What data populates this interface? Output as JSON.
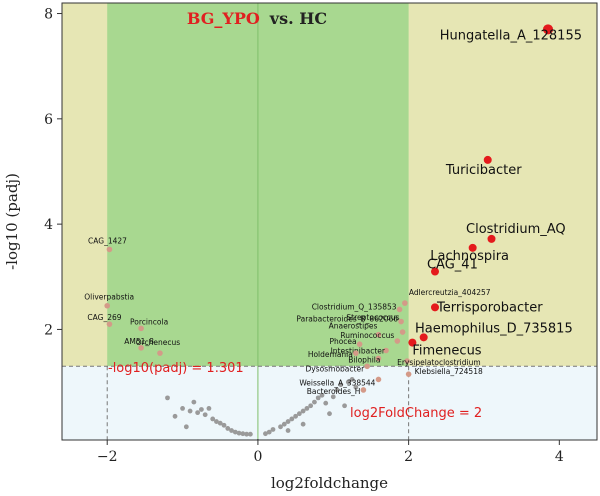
{
  "chart_data": {
    "type": "scatter",
    "title_part1": "BG_YPO",
    "title_part2": "vs. HC",
    "xlabel": "log2foldchange",
    "ylabel": "-log10 (padj)",
    "xlim": [
      -2.6,
      4.5
    ],
    "ylim": [
      -0.1,
      8.2
    ],
    "xticks": [
      -2,
      0,
      2,
      4
    ],
    "yticks": [
      2,
      4,
      6,
      8
    ],
    "x_threshold": 2,
    "y_threshold": 1.301,
    "threshold_labels": {
      "y": "-log10(padj) = 1.301",
      "x": "log2FoldChange = 2"
    },
    "colors": {
      "upregion": "#e6e6b4",
      "green": "#a8d890",
      "lower": "#eef7fb",
      "significant": "#e41a1c",
      "faded": "#d49a88",
      "nonsig": "#9a9a9a"
    },
    "significant": [
      {
        "name": "Hungatella_A_128155",
        "x": 3.85,
        "y": 7.7
      },
      {
        "name": "Turicibacter",
        "x": 3.05,
        "y": 5.22
      },
      {
        "name": "Clostridium_AQ",
        "x": 3.1,
        "y": 3.72
      },
      {
        "name": "Lachnospira",
        "x": 2.85,
        "y": 3.55
      },
      {
        "name": "CAG_41",
        "x": 2.35,
        "y": 3.1
      },
      {
        "name": "Terrisporobacter",
        "x": 2.35,
        "y": 2.42
      },
      {
        "name": "Haemophilus_D_735815",
        "x": 2.2,
        "y": 1.85
      },
      {
        "name": "Fimenecus",
        "x": 2.05,
        "y": 1.75
      }
    ],
    "labeled": [
      {
        "name": "CAG_1427",
        "x": -1.97,
        "y": 3.52
      },
      {
        "name": "Oliverpabstia",
        "x": -2.0,
        "y": 2.45
      },
      {
        "name": "CAG_269",
        "x": -1.97,
        "y": 2.1
      },
      {
        "name": "Porcincola",
        "x": -1.55,
        "y": 2.02
      },
      {
        "name": "AM51_8",
        "x": -1.55,
        "y": 1.65
      },
      {
        "name": "Orchenecus",
        "x": -1.3,
        "y": 1.55
      },
      {
        "name": "Adlercreutzia_404257",
        "x": 1.95,
        "y": 2.5
      },
      {
        "name": "Clostridium_Q_135853",
        "x": 1.88,
        "y": 2.38
      },
      {
        "name": "Parabacteroides_B_862066",
        "x": 1.9,
        "y": 2.15
      },
      {
        "name": "Streptococcus",
        "x": 1.92,
        "y": 1.95
      },
      {
        "name": "Anaerostipes",
        "x": 1.6,
        "y": 1.9
      },
      {
        "name": "Ruminococcus",
        "x": 1.85,
        "y": 1.78
      },
      {
        "name": "Phocea",
        "x": 1.35,
        "y": 1.72
      },
      {
        "name": "Intestinibacter",
        "x": 1.7,
        "y": 1.6
      },
      {
        "name": "Holdemania",
        "x": 1.3,
        "y": 1.55
      },
      {
        "name": "Bilophila",
        "x": 1.6,
        "y": 1.45
      },
      {
        "name": "Erysipelatoclostridium",
        "x": 1.98,
        "y": 1.4
      },
      {
        "name": "Dysosmobacter",
        "x": 1.45,
        "y": 1.3
      },
      {
        "name": "Klebsiella_724518",
        "x": 2.0,
        "y": 1.15
      },
      {
        "name": "Weissella_A_338544",
        "x": 1.6,
        "y": 1.05
      },
      {
        "name": "Bacteroides_H",
        "x": 1.4,
        "y": 0.85
      }
    ],
    "nonsignificant": [
      {
        "x": -1.2,
        "y": 0.7
      },
      {
        "x": -1.0,
        "y": 0.5
      },
      {
        "x": -0.9,
        "y": 0.45
      },
      {
        "x": -0.85,
        "y": 0.62
      },
      {
        "x": -0.8,
        "y": 0.42
      },
      {
        "x": -0.75,
        "y": 0.48
      },
      {
        "x": -0.7,
        "y": 0.38
      },
      {
        "x": -0.65,
        "y": 0.5
      },
      {
        "x": -0.6,
        "y": 0.3
      },
      {
        "x": -0.55,
        "y": 0.25
      },
      {
        "x": -0.5,
        "y": 0.22
      },
      {
        "x": -0.45,
        "y": 0.18
      },
      {
        "x": -0.4,
        "y": 0.12
      },
      {
        "x": -0.35,
        "y": 0.08
      },
      {
        "x": -0.3,
        "y": 0.05
      },
      {
        "x": -0.25,
        "y": 0.03
      },
      {
        "x": -0.2,
        "y": 0.02
      },
      {
        "x": -0.15,
        "y": 0.01
      },
      {
        "x": -0.1,
        "y": 0.01
      },
      {
        "x": 0.1,
        "y": 0.02
      },
      {
        "x": 0.15,
        "y": 0.05
      },
      {
        "x": 0.2,
        "y": 0.1
      },
      {
        "x": 0.3,
        "y": 0.15
      },
      {
        "x": 0.35,
        "y": 0.2
      },
      {
        "x": 0.4,
        "y": 0.25
      },
      {
        "x": 0.45,
        "y": 0.3
      },
      {
        "x": 0.5,
        "y": 0.35
      },
      {
        "x": 0.55,
        "y": 0.4
      },
      {
        "x": 0.6,
        "y": 0.45
      },
      {
        "x": 0.65,
        "y": 0.5
      },
      {
        "x": 0.7,
        "y": 0.55
      },
      {
        "x": 0.75,
        "y": 0.62
      },
      {
        "x": 0.8,
        "y": 0.7
      },
      {
        "x": 0.85,
        "y": 0.75
      },
      {
        "x": 0.9,
        "y": 0.6
      },
      {
        "x": 1.0,
        "y": 0.72
      },
      {
        "x": 1.05,
        "y": 0.85
      },
      {
        "x": 1.1,
        "y": 0.95
      },
      {
        "x": 1.2,
        "y": 1.0
      },
      {
        "x": 1.25,
        "y": 1.05
      },
      {
        "x": 1.3,
        "y": 0.9
      },
      {
        "x": 0.95,
        "y": 0.4
      },
      {
        "x": 0.6,
        "y": 0.2
      },
      {
        "x": 0.4,
        "y": 0.08
      },
      {
        "x": -1.1,
        "y": 0.35
      },
      {
        "x": -0.95,
        "y": 0.15
      },
      {
        "x": 1.15,
        "y": 0.55
      }
    ]
  }
}
